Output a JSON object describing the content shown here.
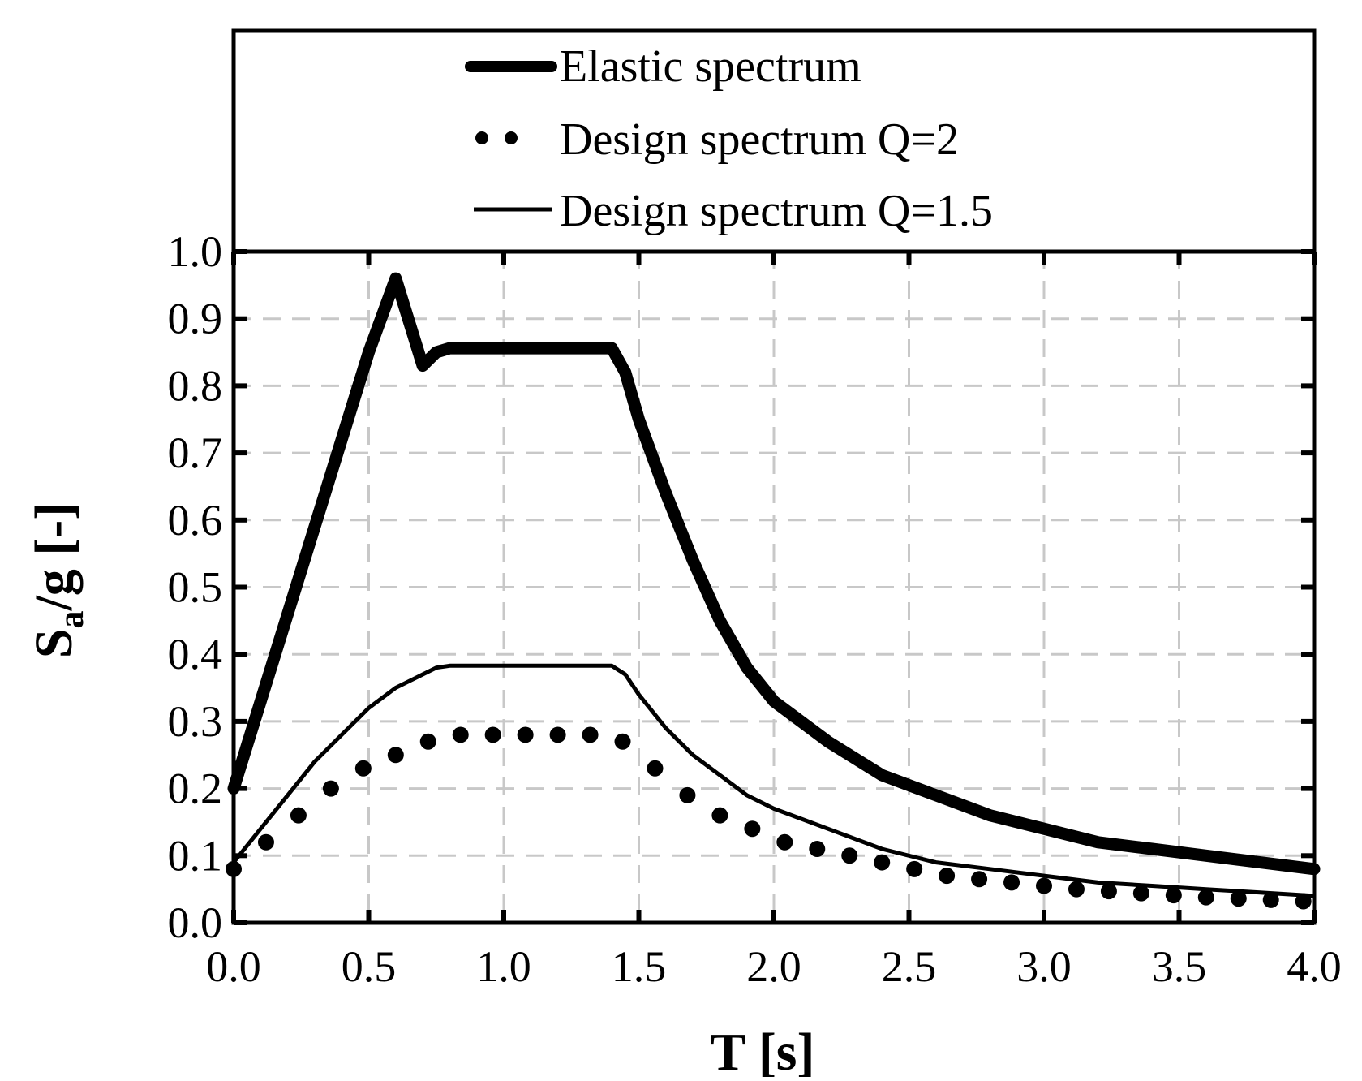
{
  "chart_data": {
    "type": "line",
    "title": "",
    "xlabel": "T [s]",
    "ylabel": {
      "main": "S",
      "sub": "a",
      "rest": "/g [-]"
    },
    "xlim": [
      0,
      4
    ],
    "ylim": [
      0,
      1
    ],
    "grid": true,
    "legend_position": "top",
    "x_ticks": [
      "0.0",
      "0.5",
      "1.0",
      "1.5",
      "2.0",
      "2.5",
      "3.0",
      "3.5",
      "4.0"
    ],
    "y_ticks": [
      "0.0",
      "0.1",
      "0.2",
      "0.3",
      "0.4",
      "0.5",
      "0.6",
      "0.7",
      "0.8",
      "0.9",
      "1.0"
    ],
    "series": [
      {
        "name": "Elastic spectrum",
        "style": "thick",
        "x": [
          0.0,
          0.1,
          0.2,
          0.3,
          0.4,
          0.5,
          0.6,
          0.7,
          0.75,
          0.8,
          0.9,
          1.0,
          1.1,
          1.2,
          1.3,
          1.4,
          1.45,
          1.5,
          1.6,
          1.7,
          1.8,
          1.9,
          2.0,
          2.2,
          2.4,
          2.6,
          2.8,
          3.0,
          3.2,
          3.4,
          3.6,
          3.8,
          4.0
        ],
        "y": [
          0.2,
          0.33,
          0.46,
          0.59,
          0.72,
          0.85,
          0.96,
          0.83,
          0.85,
          0.856,
          0.856,
          0.856,
          0.856,
          0.856,
          0.856,
          0.856,
          0.82,
          0.75,
          0.64,
          0.54,
          0.45,
          0.38,
          0.33,
          0.27,
          0.22,
          0.19,
          0.16,
          0.14,
          0.12,
          0.11,
          0.1,
          0.09,
          0.08
        ]
      },
      {
        "name": "Design spectrum Q=2",
        "style": "dotted",
        "x": [
          0.0,
          0.12,
          0.24,
          0.36,
          0.48,
          0.6,
          0.72,
          0.84,
          0.96,
          1.08,
          1.2,
          1.32,
          1.44,
          1.56,
          1.68,
          1.8,
          1.92,
          2.04,
          2.16,
          2.28,
          2.4,
          2.52,
          2.64,
          2.76,
          2.88,
          3.0,
          3.12,
          3.24,
          3.36,
          3.48,
          3.6,
          3.72,
          3.84,
          3.96
        ],
        "y": [
          0.08,
          0.12,
          0.16,
          0.2,
          0.23,
          0.25,
          0.27,
          0.28,
          0.28,
          0.28,
          0.28,
          0.28,
          0.27,
          0.23,
          0.19,
          0.16,
          0.14,
          0.12,
          0.11,
          0.1,
          0.09,
          0.08,
          0.07,
          0.065,
          0.06,
          0.055,
          0.05,
          0.047,
          0.044,
          0.041,
          0.038,
          0.036,
          0.034,
          0.032
        ]
      },
      {
        "name": "Design spectrum Q=1.5",
        "style": "thin",
        "x": [
          0.0,
          0.1,
          0.2,
          0.3,
          0.4,
          0.5,
          0.6,
          0.7,
          0.75,
          0.8,
          0.9,
          1.0,
          1.1,
          1.2,
          1.3,
          1.4,
          1.45,
          1.5,
          1.6,
          1.7,
          1.8,
          1.9,
          2.0,
          2.2,
          2.4,
          2.6,
          2.8,
          3.0,
          3.2,
          3.4,
          3.6,
          3.8,
          4.0
        ],
        "y": [
          0.09,
          0.14,
          0.19,
          0.24,
          0.28,
          0.32,
          0.35,
          0.37,
          0.38,
          0.383,
          0.383,
          0.383,
          0.383,
          0.383,
          0.383,
          0.383,
          0.37,
          0.34,
          0.29,
          0.25,
          0.22,
          0.19,
          0.17,
          0.14,
          0.11,
          0.09,
          0.08,
          0.07,
          0.06,
          0.055,
          0.05,
          0.045,
          0.04
        ]
      }
    ]
  }
}
